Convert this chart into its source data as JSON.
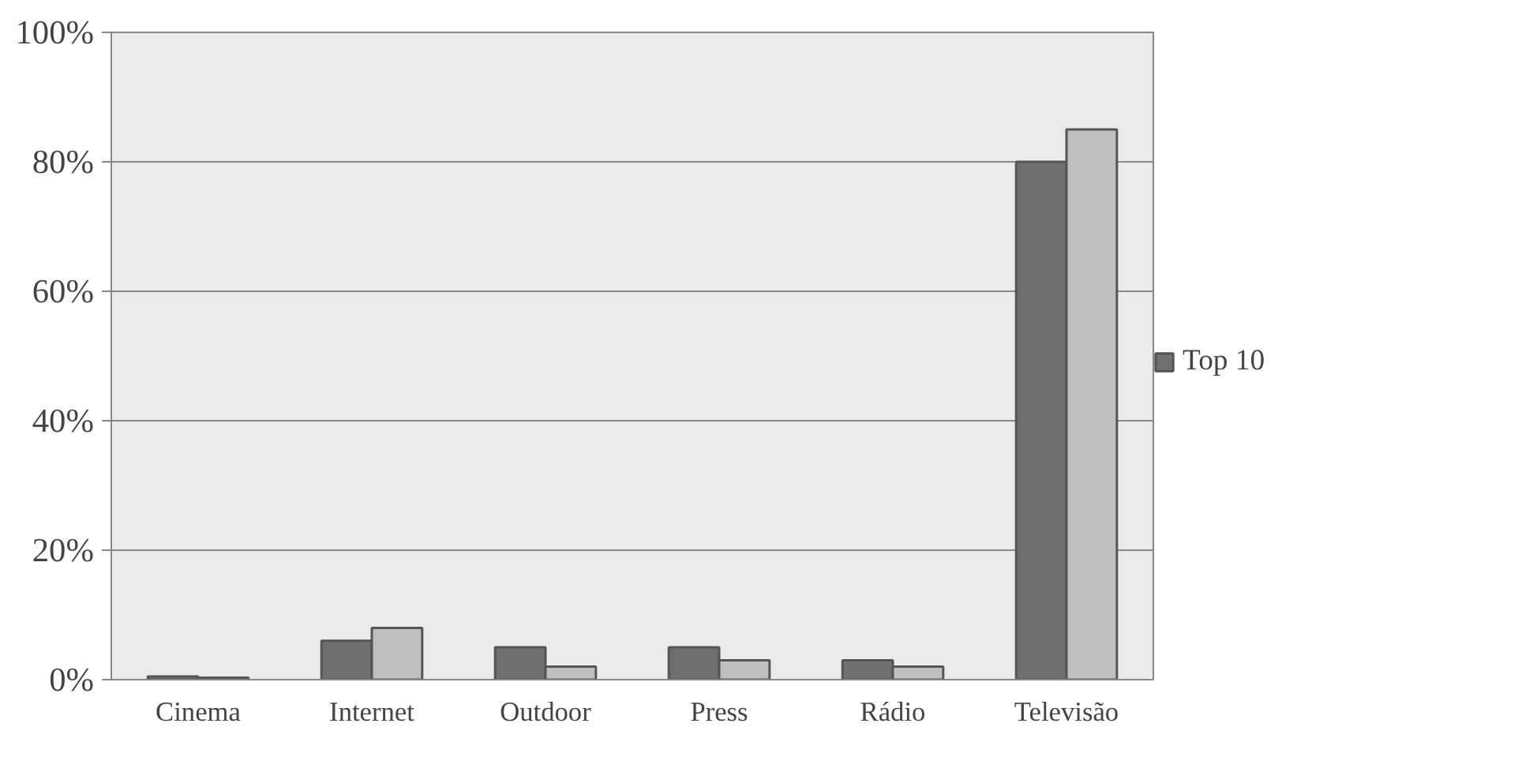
{
  "chart_data": {
    "type": "bar",
    "categories": [
      "Cinema",
      "Internet",
      "Outdoor",
      "Press",
      "Rádio",
      "Televisão"
    ],
    "series": [
      {
        "name": "Top 10",
        "color": "#707070",
        "values": [
          0.5,
          6,
          5,
          5,
          3,
          80
        ]
      },
      {
        "color": "#c0c0c0",
        "values": [
          0.3,
          8,
          2,
          3,
          2,
          85
        ]
      }
    ],
    "ylim": [
      0,
      100
    ],
    "yticks": [
      {
        "value": 0,
        "label": "0%"
      },
      {
        "value": 20,
        "label": "20%"
      },
      {
        "value": 40,
        "label": "40%"
      },
      {
        "value": 60,
        "label": "60%"
      },
      {
        "value": 80,
        "label": "80%"
      },
      {
        "value": 100,
        "label": "100%"
      }
    ],
    "grid": "y",
    "legend": "right"
  }
}
